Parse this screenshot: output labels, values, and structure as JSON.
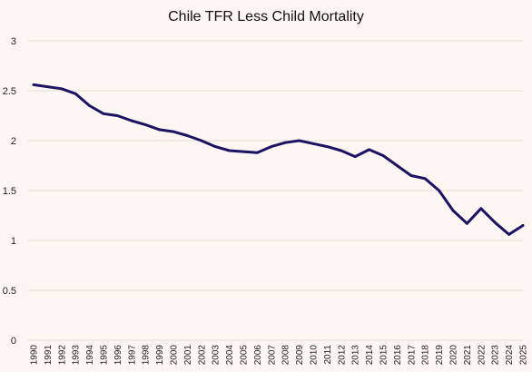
{
  "chart_data": {
    "type": "line",
    "title": "Chile TFR Less Child Mortality",
    "xlabel": "",
    "ylabel": "",
    "ylim": [
      0,
      3
    ],
    "yticks": [
      "0",
      "0.5",
      "1",
      "1.5",
      "2",
      "2.5",
      "3"
    ],
    "grid": "horizontal",
    "legend": "none",
    "x": [
      "1990",
      "1991",
      "1992",
      "1993",
      "1994",
      "1995",
      "1996",
      "1997",
      "1998",
      "1999",
      "2000",
      "2001",
      "2002",
      "2003",
      "2004",
      "2005",
      "2006",
      "2007",
      "2008",
      "2009",
      "2010",
      "2011",
      "2012",
      "2013",
      "2014",
      "2015",
      "2016",
      "2017",
      "2018",
      "2019",
      "2020",
      "2021",
      "2022",
      "2023",
      "2024",
      "2025"
    ],
    "series": [
      {
        "values": [
          2.56,
          2.54,
          2.52,
          2.47,
          2.35,
          2.27,
          2.25,
          2.2,
          2.16,
          2.11,
          2.09,
          2.05,
          2.0,
          1.94,
          1.9,
          1.89,
          1.88,
          1.94,
          1.98,
          2.0,
          1.97,
          1.94,
          1.9,
          1.84,
          1.91,
          1.85,
          1.75,
          1.65,
          1.62,
          1.5,
          1.3,
          1.17,
          1.32,
          1.18,
          1.06,
          1.15
        ],
        "color": "#1b1464"
      }
    ]
  }
}
